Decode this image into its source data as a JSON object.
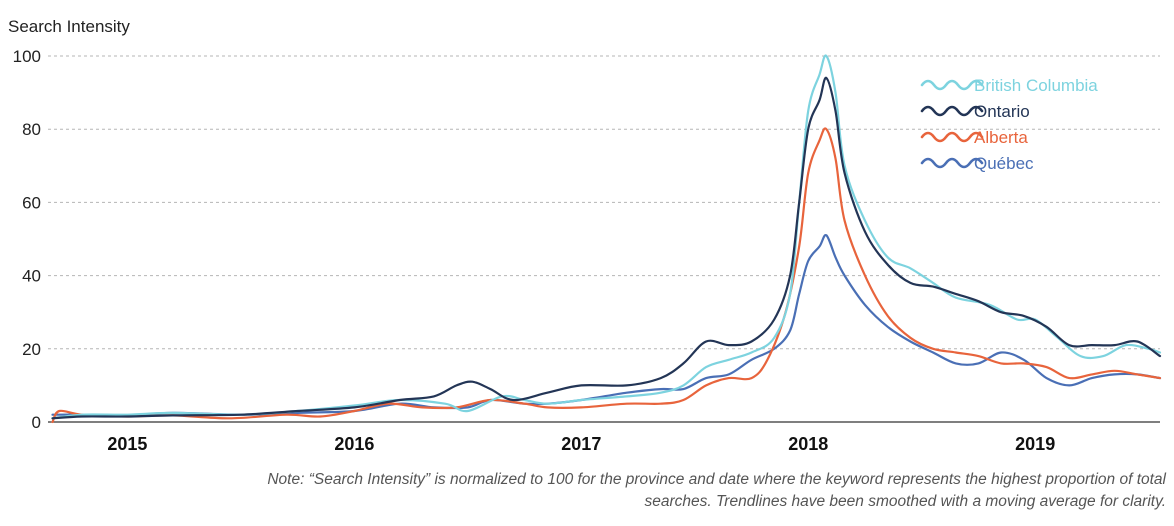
{
  "chart_data": {
    "type": "line",
    "ylabel": "Search Intensity",
    "ylim": [
      0,
      100
    ],
    "yticks": [
      0,
      20,
      40,
      60,
      80,
      100
    ],
    "xlim": [
      2014.65,
      2019.55
    ],
    "xticks": [
      {
        "label": "2015",
        "x": 2015.0
      },
      {
        "label": "2016",
        "x": 2016.0
      },
      {
        "label": "2017",
        "x": 2017.0
      },
      {
        "label": "2018",
        "x": 2018.0
      },
      {
        "label": "2019",
        "x": 2019.0
      }
    ],
    "grid": "horizontal dashed",
    "legend_position": "top-right",
    "series": [
      {
        "name": "British Columbia",
        "color": "#7dd3df",
        "points": [
          [
            2014.67,
            1
          ],
          [
            2014.8,
            2
          ],
          [
            2015.0,
            2
          ],
          [
            2015.2,
            2.5
          ],
          [
            2015.5,
            2
          ],
          [
            2015.75,
            3
          ],
          [
            2016.0,
            4.5
          ],
          [
            2016.2,
            6
          ],
          [
            2016.4,
            5
          ],
          [
            2016.5,
            3
          ],
          [
            2016.65,
            7
          ],
          [
            2016.75,
            6
          ],
          [
            2016.85,
            5
          ],
          [
            2017.0,
            6
          ],
          [
            2017.2,
            7
          ],
          [
            2017.35,
            8
          ],
          [
            2017.45,
            10
          ],
          [
            2017.55,
            15
          ],
          [
            2017.65,
            17
          ],
          [
            2017.75,
            19
          ],
          [
            2017.85,
            23
          ],
          [
            2017.92,
            35
          ],
          [
            2017.96,
            60
          ],
          [
            2018.0,
            85
          ],
          [
            2018.05,
            95
          ],
          [
            2018.08,
            100
          ],
          [
            2018.12,
            90
          ],
          [
            2018.16,
            70
          ],
          [
            2018.25,
            55
          ],
          [
            2018.35,
            45
          ],
          [
            2018.45,
            42
          ],
          [
            2018.55,
            38
          ],
          [
            2018.65,
            34
          ],
          [
            2018.8,
            32
          ],
          [
            2018.92,
            28
          ],
          [
            2019.0,
            28
          ],
          [
            2019.1,
            23
          ],
          [
            2019.2,
            18
          ],
          [
            2019.3,
            18
          ],
          [
            2019.4,
            21
          ],
          [
            2019.5,
            20
          ],
          [
            2019.55,
            19
          ]
        ]
      },
      {
        "name": "Ontario",
        "color": "#233556",
        "points": [
          [
            2014.67,
            1
          ],
          [
            2014.8,
            1.5
          ],
          [
            2015.0,
            1.5
          ],
          [
            2015.2,
            1.8
          ],
          [
            2015.5,
            2
          ],
          [
            2015.75,
            3
          ],
          [
            2016.0,
            4
          ],
          [
            2016.2,
            6
          ],
          [
            2016.35,
            7
          ],
          [
            2016.45,
            10
          ],
          [
            2016.52,
            11
          ],
          [
            2016.6,
            9
          ],
          [
            2016.7,
            6
          ],
          [
            2016.85,
            8
          ],
          [
            2017.0,
            10
          ],
          [
            2017.2,
            10
          ],
          [
            2017.35,
            12
          ],
          [
            2017.45,
            16
          ],
          [
            2017.55,
            22
          ],
          [
            2017.65,
            21
          ],
          [
            2017.75,
            22
          ],
          [
            2017.85,
            28
          ],
          [
            2017.92,
            40
          ],
          [
            2017.96,
            60
          ],
          [
            2018.0,
            80
          ],
          [
            2018.05,
            88
          ],
          [
            2018.08,
            94
          ],
          [
            2018.12,
            85
          ],
          [
            2018.16,
            68
          ],
          [
            2018.25,
            52
          ],
          [
            2018.35,
            43
          ],
          [
            2018.45,
            38
          ],
          [
            2018.55,
            37
          ],
          [
            2018.65,
            35
          ],
          [
            2018.75,
            33
          ],
          [
            2018.85,
            30
          ],
          [
            2018.95,
            29
          ],
          [
            2019.05,
            26
          ],
          [
            2019.15,
            21
          ],
          [
            2019.25,
            21
          ],
          [
            2019.35,
            21
          ],
          [
            2019.45,
            22
          ],
          [
            2019.55,
            18
          ]
        ]
      },
      {
        "name": "Alberta",
        "color": "#e8643c",
        "points": [
          [
            2014.67,
            0
          ],
          [
            2014.7,
            3
          ],
          [
            2014.8,
            2
          ],
          [
            2015.0,
            1.5
          ],
          [
            2015.2,
            1.8
          ],
          [
            2015.45,
            1
          ],
          [
            2015.7,
            2
          ],
          [
            2015.85,
            1.5
          ],
          [
            2016.0,
            3
          ],
          [
            2016.15,
            5
          ],
          [
            2016.3,
            4
          ],
          [
            2016.45,
            4
          ],
          [
            2016.6,
            6
          ],
          [
            2016.75,
            5
          ],
          [
            2016.85,
            4
          ],
          [
            2017.0,
            4
          ],
          [
            2017.2,
            5
          ],
          [
            2017.35,
            5
          ],
          [
            2017.45,
            6
          ],
          [
            2017.55,
            10
          ],
          [
            2017.65,
            12
          ],
          [
            2017.75,
            12
          ],
          [
            2017.82,
            17
          ],
          [
            2017.9,
            30
          ],
          [
            2017.96,
            48
          ],
          [
            2018.0,
            68
          ],
          [
            2018.05,
            77
          ],
          [
            2018.08,
            80
          ],
          [
            2018.12,
            72
          ],
          [
            2018.16,
            55
          ],
          [
            2018.25,
            40
          ],
          [
            2018.35,
            29
          ],
          [
            2018.45,
            23
          ],
          [
            2018.55,
            20
          ],
          [
            2018.65,
            19
          ],
          [
            2018.75,
            18
          ],
          [
            2018.85,
            16
          ],
          [
            2018.95,
            16
          ],
          [
            2019.05,
            15
          ],
          [
            2019.15,
            12
          ],
          [
            2019.25,
            13
          ],
          [
            2019.35,
            14
          ],
          [
            2019.45,
            13
          ],
          [
            2019.55,
            12
          ]
        ]
      },
      {
        "name": "Québec",
        "color": "#4a6fb5",
        "points": [
          [
            2014.67,
            2
          ],
          [
            2014.8,
            2
          ],
          [
            2015.0,
            1.8
          ],
          [
            2015.2,
            2.5
          ],
          [
            2015.5,
            2
          ],
          [
            2015.75,
            2.5
          ],
          [
            2016.0,
            3
          ],
          [
            2016.2,
            5
          ],
          [
            2016.35,
            4
          ],
          [
            2016.5,
            4
          ],
          [
            2016.6,
            6
          ],
          [
            2016.75,
            5
          ],
          [
            2016.85,
            5
          ],
          [
            2017.0,
            6
          ],
          [
            2017.2,
            8
          ],
          [
            2017.35,
            9
          ],
          [
            2017.45,
            9
          ],
          [
            2017.55,
            12
          ],
          [
            2017.65,
            13
          ],
          [
            2017.75,
            17
          ],
          [
            2017.85,
            20
          ],
          [
            2017.92,
            25
          ],
          [
            2017.96,
            35
          ],
          [
            2018.0,
            44
          ],
          [
            2018.05,
            48
          ],
          [
            2018.08,
            51
          ],
          [
            2018.12,
            45
          ],
          [
            2018.16,
            40
          ],
          [
            2018.25,
            32
          ],
          [
            2018.35,
            26
          ],
          [
            2018.45,
            22
          ],
          [
            2018.55,
            19
          ],
          [
            2018.65,
            16
          ],
          [
            2018.75,
            16
          ],
          [
            2018.85,
            19
          ],
          [
            2018.95,
            17
          ],
          [
            2019.05,
            12
          ],
          [
            2019.15,
            10
          ],
          [
            2019.25,
            12
          ],
          [
            2019.35,
            13
          ],
          [
            2019.45,
            13
          ],
          [
            2019.55,
            12
          ]
        ]
      }
    ]
  },
  "note": "Note: “Search Intensity” is normalized to 100 for the province and date where the keyword represents the highest proportion of total searches. Trendlines have been smoothed with a moving average for clarity."
}
